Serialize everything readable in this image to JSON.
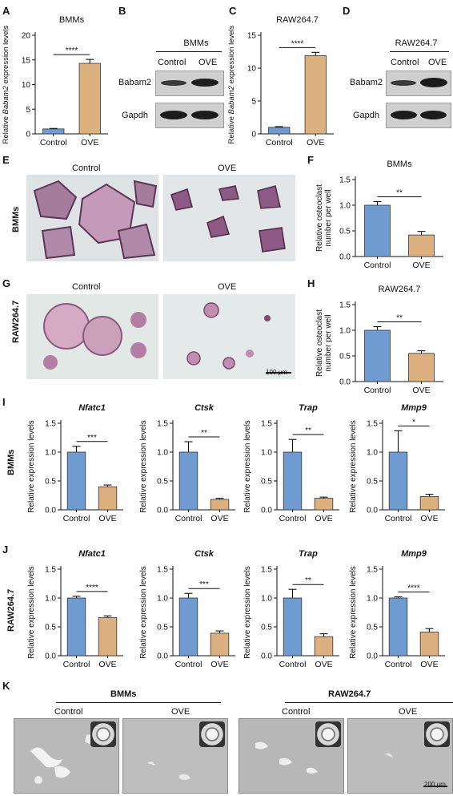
{
  "panels": {
    "A": "A",
    "B": "B",
    "C": "C",
    "D": "D",
    "E": "E",
    "F": "F",
    "G": "G",
    "H": "H",
    "I": "I",
    "J": "J",
    "K": "K"
  },
  "sig": {
    "four": "****",
    "three": "***",
    "two": "**",
    "one": "*"
  },
  "groups": {
    "control": "Control",
    "ove": "OVE"
  },
  "cells": {
    "bmms": "BMMs",
    "raw": "RAW264.7"
  },
  "blots": {
    "babam2": "Babam2",
    "gapdh": "Gapdh"
  },
  "axis": {
    "babam2_expr_pre": "Relative ",
    "babam2_expr_gene": "Babam2",
    "babam2_expr_post": " expression levels",
    "osteoclast_line1": "Relative osteoclast",
    "osteoclast_line2": "number per well",
    "rel_expr": "Relative expression levels"
  },
  "scale": {
    "s100": "100 μm",
    "s200": "200 μm"
  },
  "colors": {
    "control": "#6f9bd1",
    "ove": "#ddb07f",
    "dark": "#111111"
  },
  "chart_data": [
    {
      "id": "A",
      "type": "bar",
      "title": "BMMs",
      "categories": [
        "Control",
        "OVE"
      ],
      "values": [
        1.0,
        14.3
      ],
      "errors": [
        0.1,
        0.8
      ],
      "ylim": [
        0,
        20
      ],
      "ticks": [
        0,
        5,
        10,
        15,
        20
      ],
      "ylabel": "Relative Babam2 expression levels",
      "sig": "****"
    },
    {
      "id": "C",
      "type": "bar",
      "title": "RAW264.7",
      "categories": [
        "Control",
        "OVE"
      ],
      "values": [
        1.0,
        11.9
      ],
      "errors": [
        0.1,
        0.5
      ],
      "ylim": [
        0,
        15
      ],
      "ticks": [
        0,
        5,
        10,
        15
      ],
      "ylabel": "Relative Babam2 expression levels",
      "sig": "****"
    },
    {
      "id": "F",
      "type": "bar",
      "title": "BMMs",
      "categories": [
        "Control",
        "OVE"
      ],
      "values": [
        1.0,
        0.42
      ],
      "errors": [
        0.07,
        0.07
      ],
      "ylim": [
        0,
        1.5
      ],
      "ticks": [
        0.0,
        0.5,
        1.0,
        1.5
      ],
      "ylabel": "Relative osteoclast number per well",
      "sig": "**"
    },
    {
      "id": "H",
      "type": "bar",
      "title": "RAW264.7",
      "categories": [
        "Control",
        "OVE"
      ],
      "values": [
        1.0,
        0.55
      ],
      "errors": [
        0.07,
        0.05
      ],
      "ylim": [
        0,
        1.5
      ],
      "ticks": [
        0.0,
        0.5,
        1.0,
        1.5
      ],
      "ylabel": "Relative osteoclast number per well",
      "sig": "**"
    },
    {
      "id": "I1",
      "type": "bar",
      "title": "Nfatc1",
      "categories": [
        "Control",
        "OVE"
      ],
      "values": [
        1.0,
        0.4
      ],
      "errors": [
        0.1,
        0.03
      ],
      "ylim": [
        0,
        1.5
      ],
      "ticks": [
        0.0,
        0.5,
        1.0,
        1.5
      ],
      "ylabel": "Relative expression levels",
      "sig": "***"
    },
    {
      "id": "I2",
      "type": "bar",
      "title": "Ctsk",
      "categories": [
        "Control",
        "OVE"
      ],
      "values": [
        1.0,
        0.18
      ],
      "errors": [
        0.18,
        0.02
      ],
      "ylim": [
        0,
        1.5
      ],
      "ticks": [
        0.0,
        0.5,
        1.0,
        1.5
      ],
      "ylabel": "Relative expression levels",
      "sig": "**"
    },
    {
      "id": "I3",
      "type": "bar",
      "title": "Trap",
      "categories": [
        "Control",
        "OVE"
      ],
      "values": [
        1.0,
        0.2
      ],
      "errors": [
        0.22,
        0.02
      ],
      "ylim": [
        0,
        1.5
      ],
      "ticks": [
        0.0,
        0.5,
        1.0,
        1.5
      ],
      "ylabel": "Relative expression levels",
      "sig": "**"
    },
    {
      "id": "I4",
      "type": "bar",
      "title": "Mmp9",
      "categories": [
        "Control",
        "OVE"
      ],
      "values": [
        1.0,
        0.23
      ],
      "errors": [
        0.37,
        0.04
      ],
      "ylim": [
        0,
        1.5
      ],
      "ticks": [
        0.0,
        0.5,
        1.0,
        1.5
      ],
      "ylabel": "Relative expression levels",
      "sig": "*"
    },
    {
      "id": "J1",
      "type": "bar",
      "title": "Nfatc1",
      "categories": [
        "Control",
        "OVE"
      ],
      "values": [
        1.0,
        0.66
      ],
      "errors": [
        0.03,
        0.03
      ],
      "ylim": [
        0,
        1.5
      ],
      "ticks": [
        0.0,
        0.5,
        1.0,
        1.5
      ],
      "ylabel": "Relative expression levels",
      "sig": "****"
    },
    {
      "id": "J2",
      "type": "bar",
      "title": "Ctsk",
      "categories": [
        "Control",
        "OVE"
      ],
      "values": [
        1.0,
        0.39
      ],
      "errors": [
        0.08,
        0.04
      ],
      "ylim": [
        0,
        1.5
      ],
      "ticks": [
        0.0,
        0.5,
        1.0,
        1.5
      ],
      "ylabel": "Relative expression levels",
      "sig": "***"
    },
    {
      "id": "J3",
      "type": "bar",
      "title": "Trap",
      "categories": [
        "Control",
        "OVE"
      ],
      "values": [
        1.0,
        0.33
      ],
      "errors": [
        0.15,
        0.05
      ],
      "ylim": [
        0,
        1.5
      ],
      "ticks": [
        0.0,
        0.5,
        1.0,
        1.5
      ],
      "ylabel": "Relative expression levels",
      "sig": "**"
    },
    {
      "id": "J4",
      "type": "bar",
      "title": "Mmp9",
      "categories": [
        "Control",
        "OVE"
      ],
      "values": [
        1.0,
        0.41
      ],
      "errors": [
        0.02,
        0.06
      ],
      "ylim": [
        0,
        1.5
      ],
      "ticks": [
        0.0,
        0.5,
        1.0,
        1.5
      ],
      "ylabel": "Relative expression levels",
      "sig": "****"
    }
  ]
}
